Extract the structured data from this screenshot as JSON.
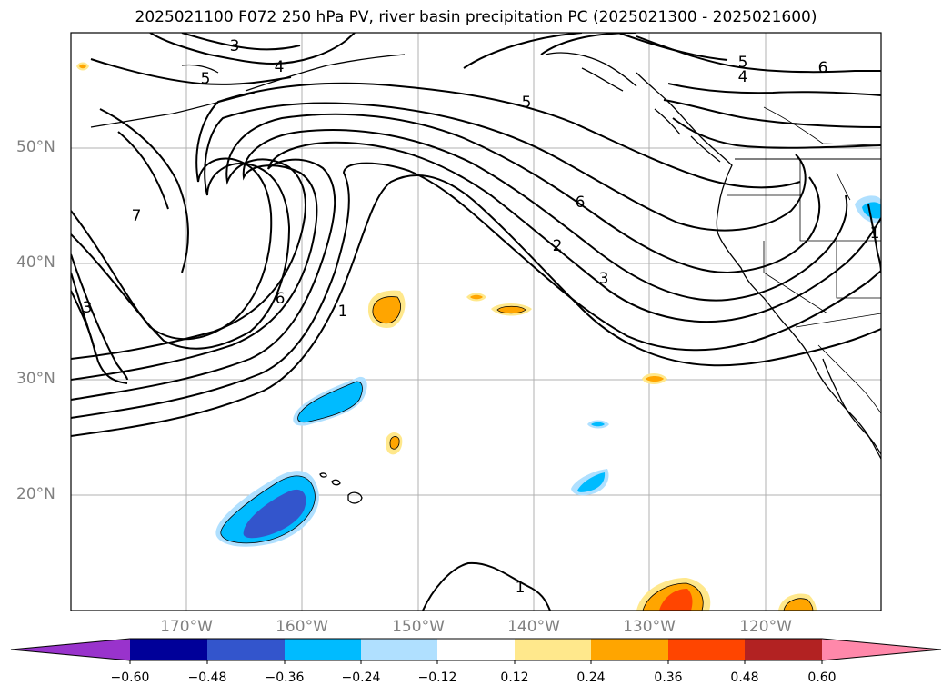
{
  "title": "2025021100 F072 250 hPa PV, river basin precipitation PC (2025021300 - 2025021600)",
  "lat_labels": [
    "50°N",
    "40°N",
    "30°N",
    "20°N"
  ],
  "lon_labels": [
    "170°W",
    "160°W",
    "150°W",
    "140°W",
    "130°W",
    "120°W"
  ],
  "contour_labels": [
    "3",
    "4",
    "5",
    "5",
    "5",
    "4",
    "6",
    "7",
    "3",
    "6",
    "1",
    "6",
    "2",
    "3",
    "1",
    "1"
  ],
  "colorbar": {
    "ticks": [
      "−0.60",
      "−0.48",
      "−0.36",
      "−0.24",
      "−0.12",
      "0.12",
      "0.24",
      "0.36",
      "0.48",
      "0.60"
    ],
    "colors": [
      "#9933cc",
      "#000099",
      "#3355cc",
      "#00bbff",
      "#b0e0ff",
      "#ffffff",
      "#ffe88c",
      "#ffa500",
      "#ff4500",
      "#b22222",
      "#ff88aa"
    ]
  },
  "shading_colors": {
    "neg_weak": "#b0e0ff",
    "neg_mid": "#00bbff",
    "neg_strong": "#3355cc",
    "pos_weak": "#ffe88c",
    "pos_mid": "#ffa500",
    "pos_strong": "#ff4500"
  }
}
